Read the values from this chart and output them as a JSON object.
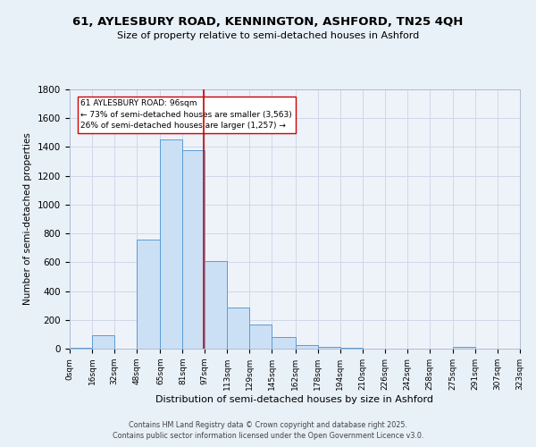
{
  "title_line1": "61, AYLESBURY ROAD, KENNINGTON, ASHFORD, TN25 4QH",
  "title_line2": "Size of property relative to semi-detached houses in Ashford",
  "xlabel": "Distribution of semi-detached houses by size in Ashford",
  "ylabel": "Number of semi-detached properties",
  "bar_left_edges": [
    0,
    16,
    32,
    48,
    65,
    81,
    97,
    113,
    129,
    145,
    162,
    178,
    194,
    210,
    226,
    242,
    258,
    275,
    291,
    307
  ],
  "bar_widths": [
    16,
    16,
    16,
    17,
    16,
    16,
    16,
    16,
    16,
    17,
    16,
    16,
    16,
    16,
    16,
    16,
    17,
    16,
    16,
    16
  ],
  "bar_heights": [
    5,
    95,
    3,
    760,
    1450,
    1375,
    610,
    285,
    170,
    80,
    25,
    15,
    4,
    0,
    0,
    0,
    0,
    10,
    0,
    0
  ],
  "bar_color": "#cce0f5",
  "bar_edge_color": "#5b9bd5",
  "tick_labels": [
    "0sqm",
    "16sqm",
    "32sqm",
    "48sqm",
    "65sqm",
    "81sqm",
    "97sqm",
    "113sqm",
    "129sqm",
    "145sqm",
    "162sqm",
    "178sqm",
    "194sqm",
    "210sqm",
    "226sqm",
    "242sqm",
    "258sqm",
    "275sqm",
    "291sqm",
    "307sqm",
    "323sqm"
  ],
  "property_size": 96,
  "vline_color": "#cc0000",
  "annotation_text": "61 AYLESBURY ROAD: 96sqm\n← 73% of semi-detached houses are smaller (3,563)\n26% of semi-detached houses are larger (1,257) →",
  "annotation_box_color": "#ffffff",
  "annotation_border_color": "#cc0000",
  "ylim": [
    0,
    1800
  ],
  "yticks": [
    0,
    200,
    400,
    600,
    800,
    1000,
    1200,
    1400,
    1600,
    1800
  ],
  "grid_color": "#d0d8e8",
  "background_color": "#e8f0f8",
  "axes_background": "#eef3fa",
  "footer_line1": "Contains HM Land Registry data © Crown copyright and database right 2025.",
  "footer_line2": "Contains public sector information licensed under the Open Government Licence v3.0."
}
